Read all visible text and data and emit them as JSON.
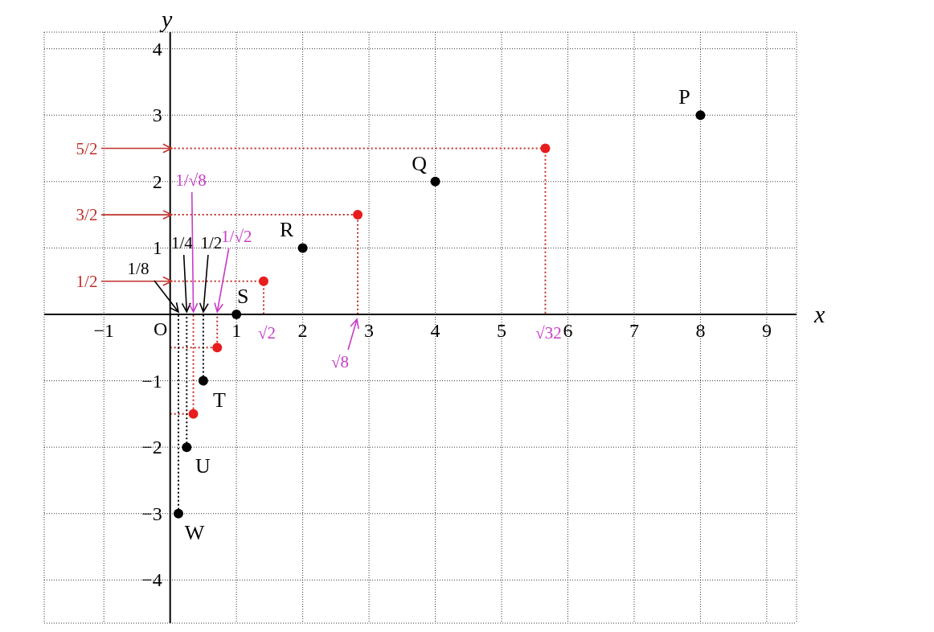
{
  "chart_data": {
    "type": "scatter",
    "xlabel": "x",
    "ylabel": "y",
    "xlim": [
      -1.9,
      9.45
    ],
    "ylim": [
      -4.65,
      4.25
    ],
    "xticks": [
      {
        "value": -1,
        "label": "−1"
      },
      1,
      2,
      3,
      4,
      5,
      6,
      7,
      8,
      9
    ],
    "yticks": [
      {
        "value": -4,
        "label": "−4"
      },
      {
        "value": -3,
        "label": "−3"
      },
      {
        "value": -2,
        "label": "−2"
      },
      {
        "value": -1,
        "label": "−1"
      },
      1,
      2,
      3,
      4
    ],
    "grid": true,
    "marker": "circle",
    "series": [
      {
        "type": "line",
        "line_style": "dotted",
        "marker": "none",
        "color": "#c0302a",
        "x": [
          0,
          5.66,
          5.66
        ],
        "values": [
          2.5,
          2.5,
          0
        ]
      },
      {
        "type": "line",
        "line_style": "dotted",
        "marker": "none",
        "color": "#c0302a",
        "x": [
          0,
          2.83,
          2.83
        ],
        "values": [
          1.5,
          1.5,
          0
        ]
      },
      {
        "type": "line",
        "line_style": "dotted",
        "marker": "none",
        "color": "#c0302a",
        "x": [
          0,
          1.41,
          1.41
        ],
        "values": [
          0.5,
          0.5,
          0
        ]
      },
      {
        "type": "line",
        "line_style": "dotted",
        "marker": "none",
        "color": "#c0302a",
        "x": [
          0,
          0.71,
          0.71
        ],
        "values": [
          -0.5,
          -0.5,
          0
        ]
      },
      {
        "type": "line",
        "line_style": "dotted",
        "marker": "none",
        "color": "#c0302a",
        "x": [
          0,
          0.35,
          0.35
        ],
        "values": [
          -1.5,
          -1.5,
          0
        ]
      },
      {
        "type": "line",
        "line_style": "dotted",
        "marker": "none",
        "color": "#000000",
        "x": [
          0.5,
          0.5
        ],
        "values": [
          -1,
          0
        ]
      },
      {
        "type": "line",
        "line_style": "dotted",
        "marker": "none",
        "color": "#000000",
        "x": [
          0.25,
          0.25
        ],
        "values": [
          -2,
          0
        ]
      },
      {
        "type": "line",
        "line_style": "dotted",
        "marker": "none",
        "color": "#000000",
        "x": [
          0.125,
          0.125
        ],
        "values": [
          -3,
          0
        ]
      },
      {
        "color": "#000000",
        "x": [
          8,
          4,
          2,
          1,
          0.5,
          0.25,
          0.125
        ],
        "values": [
          3,
          2,
          1,
          0,
          -1,
          -2,
          -3
        ]
      },
      {
        "color": "#e81c1c",
        "x": [
          5.66,
          2.83,
          1.41,
          0.71,
          0.35
        ],
        "values": [
          2.5,
          1.5,
          0.5,
          -0.5,
          -1.5
        ]
      }
    ],
    "annotations": [
      "O",
      {
        "text": "P",
        "x": 8,
        "y": 3
      },
      {
        "text": "Q",
        "x": 4,
        "y": 2
      },
      {
        "text": "R",
        "x": 2,
        "y": 1
      },
      {
        "text": "S",
        "x": 1,
        "y": 0
      },
      {
        "text": "T",
        "x": 0.5,
        "y": -1
      },
      {
        "text": "U",
        "x": 0.25,
        "y": -2
      },
      {
        "text": "W",
        "x": 0.125,
        "y": -3
      },
      "5/2",
      "3/2",
      "1/2",
      {
        "text": "1/8",
        "x": 0.125,
        "y": 0
      },
      {
        "text": "1/4",
        "x": 0.25,
        "y": 0
      },
      {
        "text": "1/2",
        "x": 0.5,
        "y": 0
      },
      {
        "text": "1/√8",
        "x": 0.35,
        "y": 0
      },
      {
        "text": "1/√2",
        "x": 0.71,
        "y": 0
      },
      {
        "text": "√2",
        "x": 1.41,
        "y": 0
      },
      {
        "text": "√8",
        "x": 2.83,
        "y": 0
      },
      {
        "text": "√32",
        "x": 5.66,
        "y": 0
      }
    ]
  }
}
